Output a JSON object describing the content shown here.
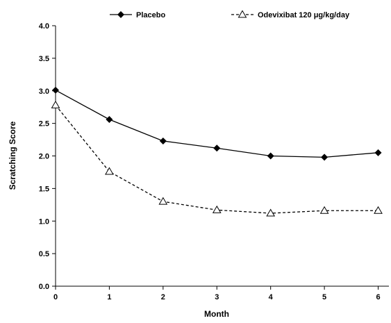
{
  "chart_data": {
    "type": "line",
    "xlabel": "Month",
    "ylabel": "Scratching Score",
    "xlim": [
      0,
      6.2
    ],
    "ylim": [
      0,
      4.0
    ],
    "x_ticks": [
      "0",
      "1",
      "2",
      "3",
      "4",
      "5",
      "6"
    ],
    "y_ticks": [
      "0.0",
      "0.5",
      "1.0",
      "1.5",
      "2.0",
      "2.5",
      "3.0",
      "3.5",
      "4.0"
    ],
    "grid": false,
    "legend_position": "top",
    "series": [
      {
        "name": "Placebo",
        "marker": "filled-diamond",
        "line": "solid",
        "color": "#000000",
        "x": [
          0,
          1,
          2,
          3,
          4,
          5,
          6
        ],
        "y": [
          3.01,
          2.56,
          2.23,
          2.12,
          2.0,
          1.98,
          2.05
        ]
      },
      {
        "name": "Odevixibat 120 μg/kg/day",
        "marker": "open-triangle",
        "line": "dashed",
        "color": "#000000",
        "x": [
          0,
          1,
          2,
          3,
          4,
          5,
          6
        ],
        "y": [
          2.78,
          1.76,
          1.3,
          1.17,
          1.12,
          1.16,
          1.16
        ]
      }
    ]
  }
}
